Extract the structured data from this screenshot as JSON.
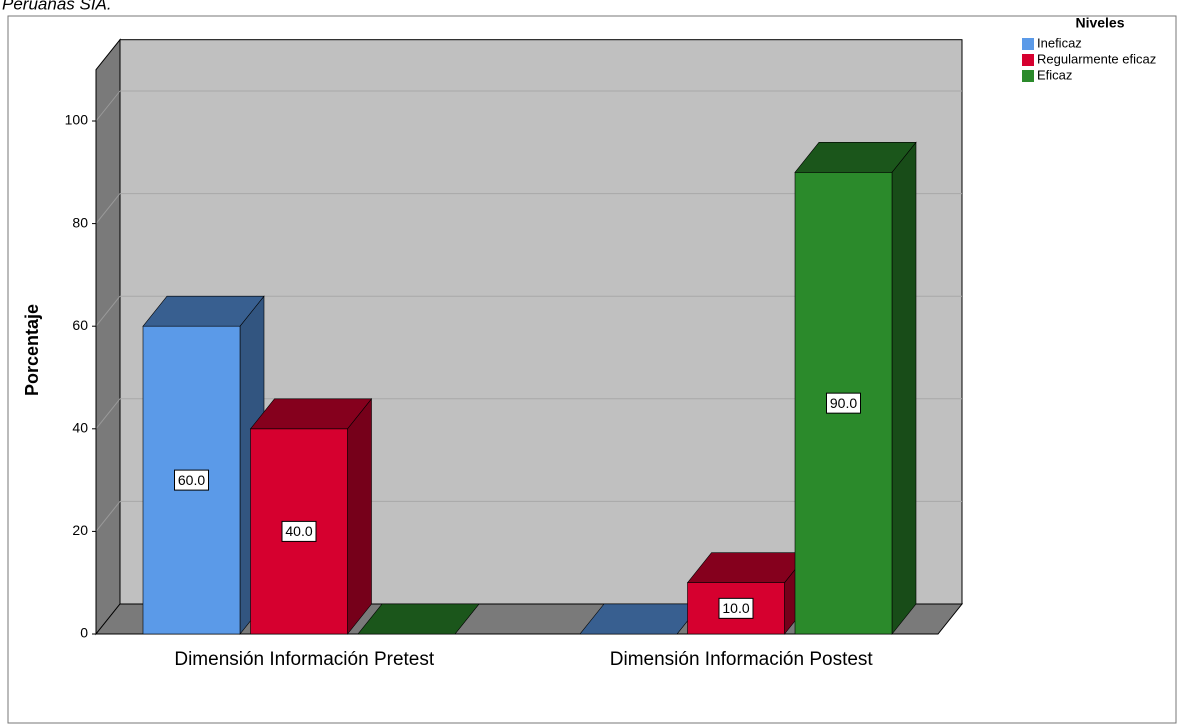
{
  "caption": "Peruanas SIA.",
  "chart_data": {
    "type": "bar3d",
    "categories": [
      "Dimensión Información Pretest",
      "Dimensión Información Postest"
    ],
    "y_label": "Porcentaje",
    "legend_title": "Niveles",
    "series": [
      {
        "name": "Ineficaz",
        "color": "#5b9ae8",
        "values": [
          60,
          0
        ],
        "value_labels": [
          "60.0",
          null
        ]
      },
      {
        "name": "Regularmente eficaz",
        "color": "#d6002f",
        "values": [
          40,
          10
        ],
        "value_labels": [
          "40.0",
          "10.0"
        ]
      },
      {
        "name": "Eficaz",
        "color": "#2b8a2b",
        "values": [
          0,
          90
        ],
        "value_labels": [
          null,
          "90.0"
        ]
      }
    ],
    "ylim": [
      0,
      110
    ],
    "yticks": [
      0,
      20,
      40,
      60,
      80,
      100
    ],
    "grid": true
  }
}
